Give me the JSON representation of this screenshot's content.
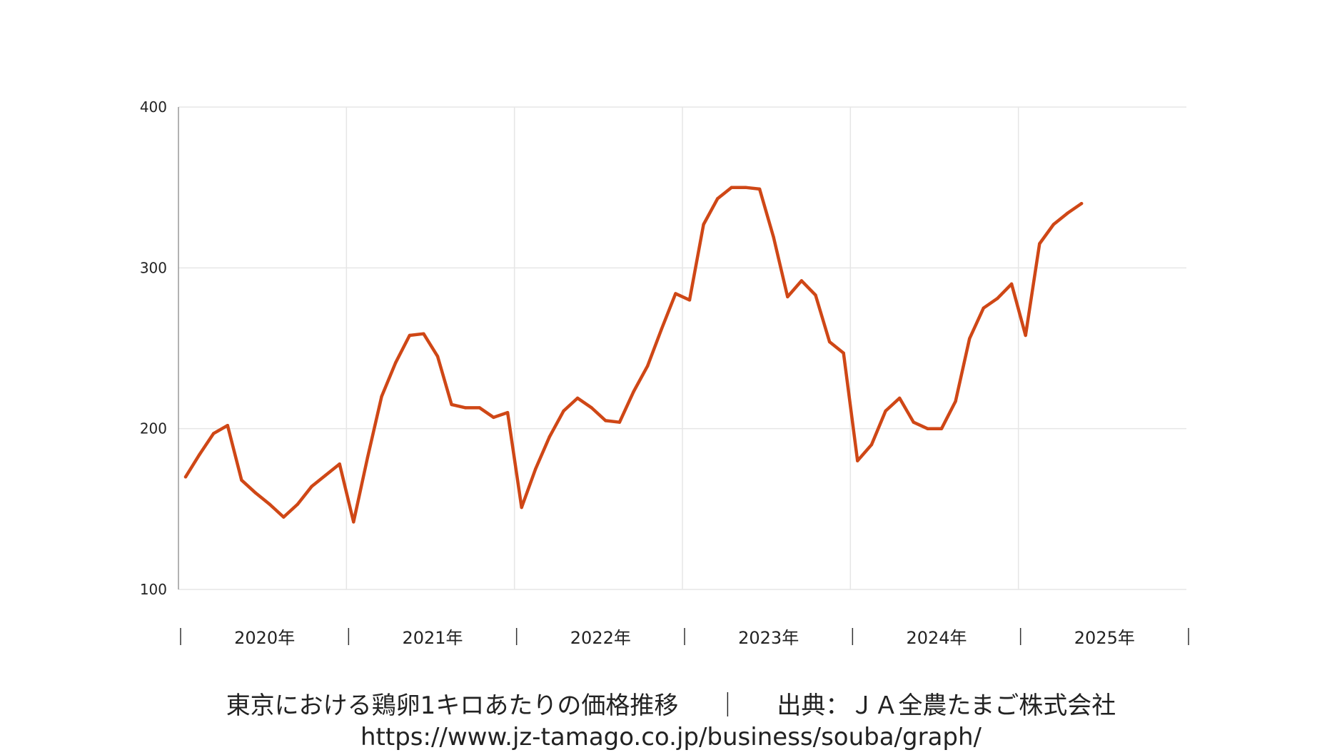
{
  "colors": {
    "series": "#cf4716",
    "grid": "#e6e6e6",
    "axis": "#999999",
    "text": "#222222"
  },
  "chart_data": {
    "type": "line",
    "title": "",
    "xlabel": "",
    "ylabel": "",
    "ylim": [
      100,
      400
    ],
    "yticks": [
      100,
      200,
      300,
      400
    ],
    "grid": true,
    "x_tick_labels": [
      "2020年",
      "2021年",
      "2022年",
      "2023年",
      "2024年",
      "2025年"
    ],
    "x_start": "2020-01",
    "series": [
      {
        "values": [
          170,
          184,
          197,
          202,
          168,
          160,
          153,
          145,
          153,
          164,
          171,
          178,
          142,
          182,
          220,
          241,
          258,
          259,
          245,
          215,
          213,
          213,
          207,
          210,
          151,
          175,
          195,
          211,
          219,
          213,
          205,
          204,
          223,
          239,
          262,
          284,
          280,
          327,
          343,
          350,
          350,
          349,
          319,
          282,
          292,
          283,
          254,
          247,
          180,
          190,
          211,
          219,
          204,
          200,
          200,
          217,
          256,
          275,
          281,
          290,
          258,
          315,
          327,
          334,
          340
        ]
      }
    ]
  },
  "caption": {
    "title": "東京における鶏卵1キロあたりの価格推移",
    "separator": "｜",
    "source": "出典：ＪＡ全農たまご株式会社",
    "url": "https://www.jz-tamago.co.jp/business/souba/graph/"
  }
}
